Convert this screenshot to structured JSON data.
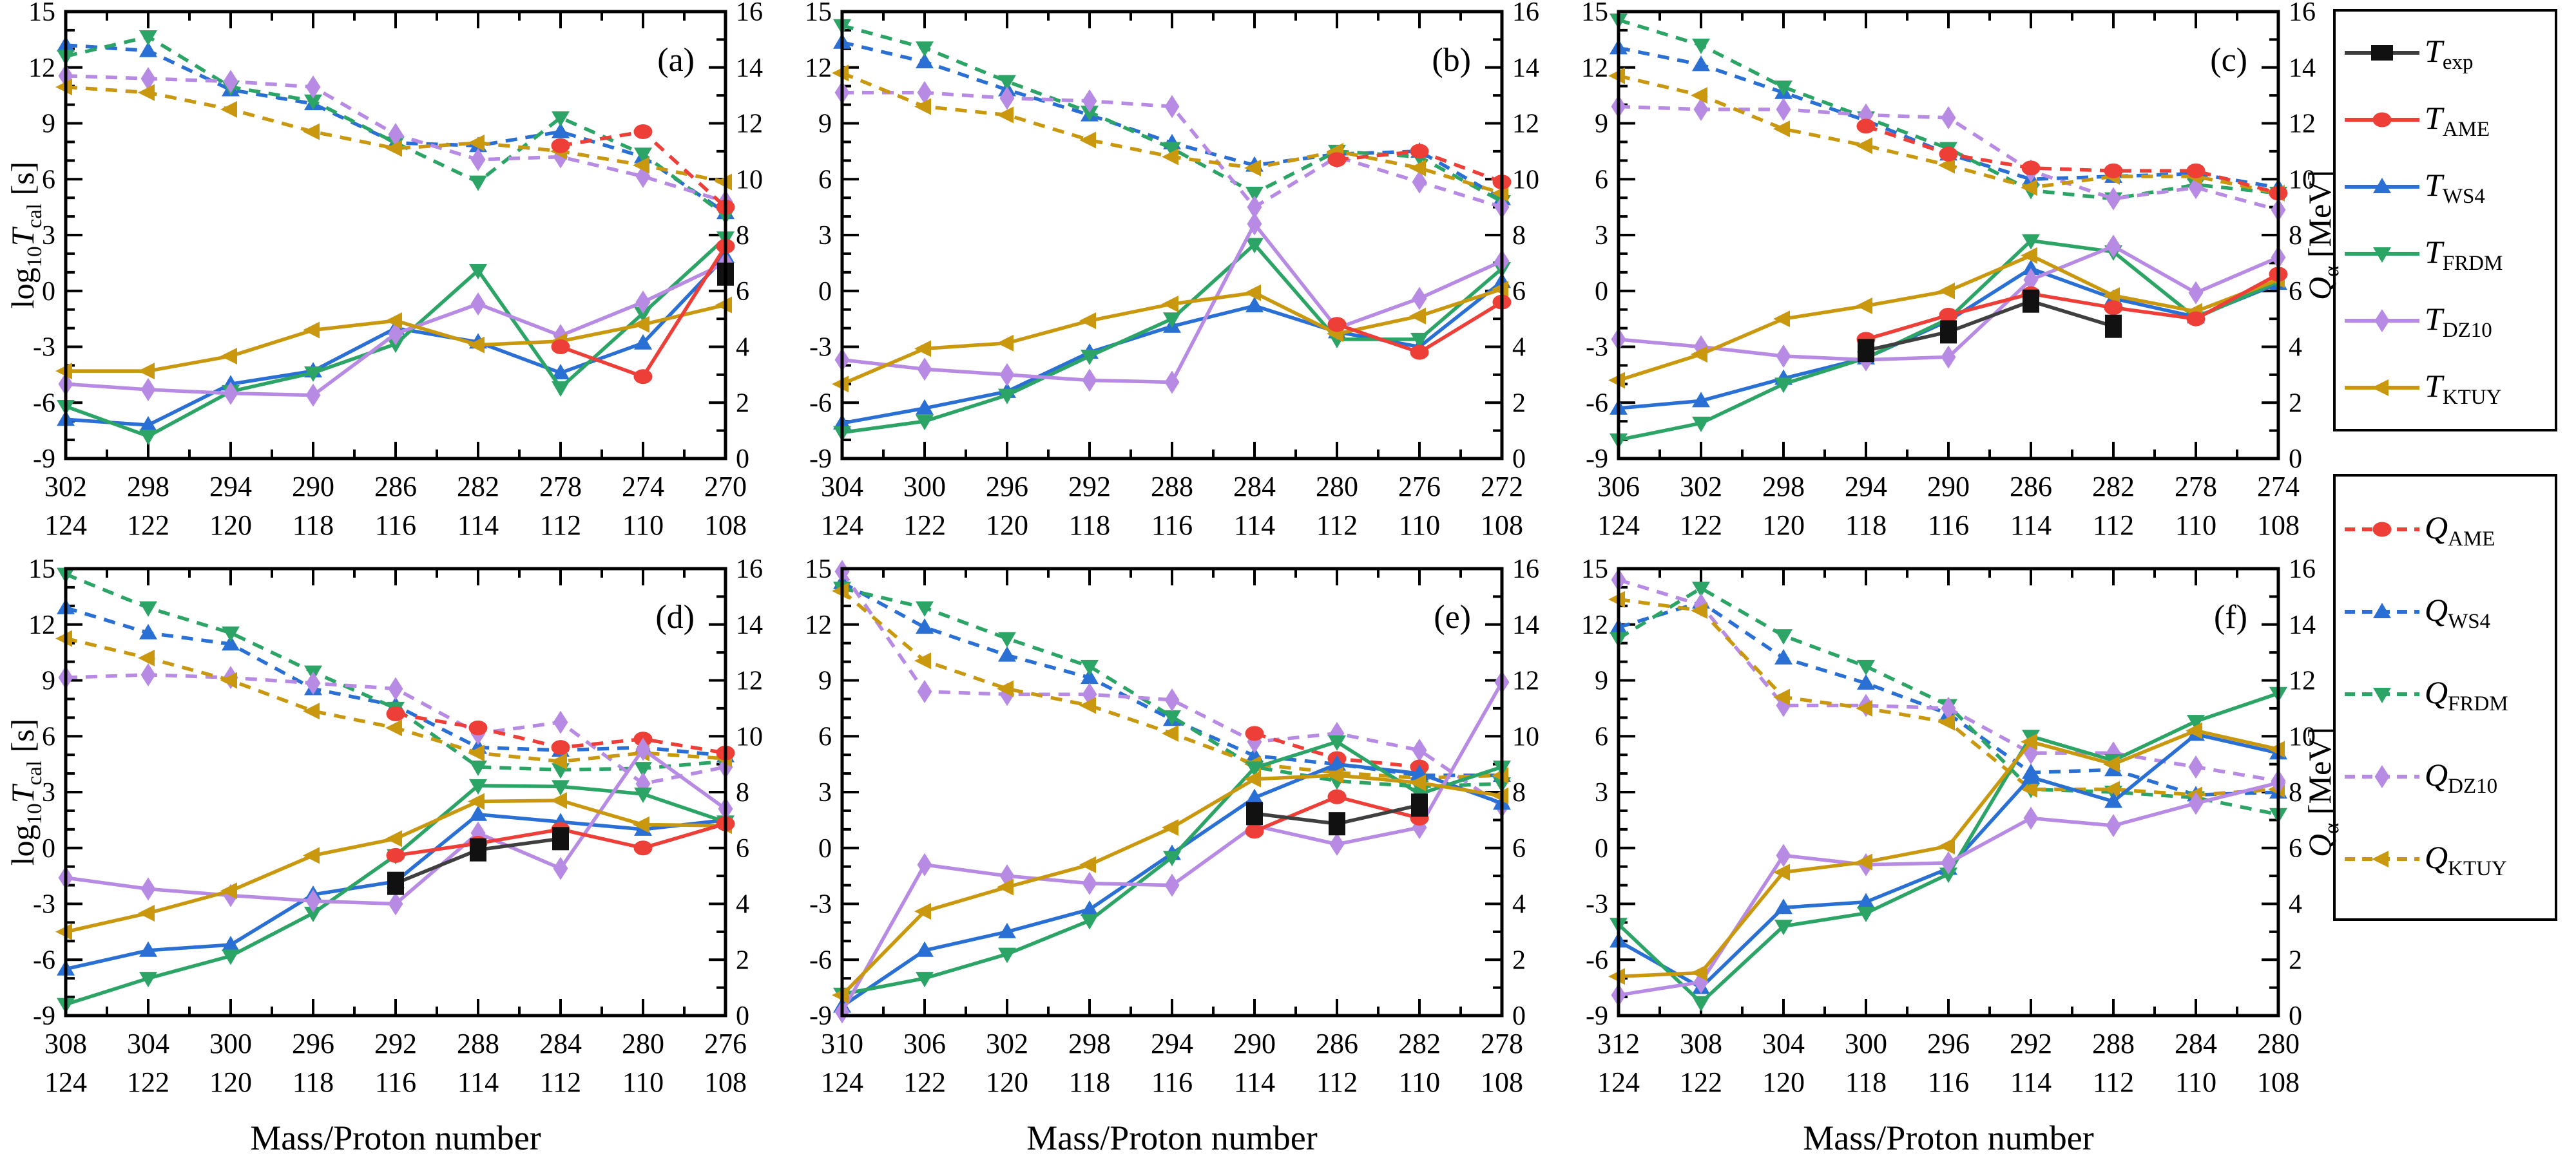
{
  "figure": {
    "x_axis_title": "Mass/Proton number",
    "left_axis_title": "log_{10}*T*_{cal} [s]",
    "right_axis_title": "*Q*_{α} [MeV]",
    "left_axis": {
      "min": -9,
      "max": 15,
      "major": 3,
      "minor": 1
    },
    "right_axis": {
      "min": 0,
      "max": 16,
      "major": 2,
      "minor": 1
    },
    "colors": {
      "black": "#111111",
      "exp_line": "#3f3f3f",
      "red": "#ee3e38",
      "blue": "#2a6fd4",
      "green": "#2ba466",
      "purple": "#b78ae4",
      "gold": "#c9980e"
    }
  },
  "series_styles": [
    {
      "id": "T_exp",
      "label": "*T*_{exp}",
      "color": "#111111",
      "line_color": "#3f3f3f",
      "marker": "square",
      "dashed": false,
      "axis": "left"
    },
    {
      "id": "T_AME",
      "label": "*T*_{AME}",
      "color": "#ee3e38",
      "marker": "circle",
      "dashed": false,
      "axis": "left"
    },
    {
      "id": "T_WS4",
      "label": "*T*_{WS4}",
      "color": "#2a6fd4",
      "marker": "triangle-up",
      "dashed": false,
      "axis": "left"
    },
    {
      "id": "T_FRDM",
      "label": "*T*_{FRDM}",
      "color": "#2ba466",
      "marker": "triangle-down",
      "dashed": false,
      "axis": "left"
    },
    {
      "id": "T_DZ10",
      "label": "*T*_{DZ10}",
      "color": "#b78ae4",
      "marker": "diamond",
      "dashed": false,
      "axis": "left"
    },
    {
      "id": "T_KTUY",
      "label": "*T*_{KTUY}",
      "color": "#c9980e",
      "marker": "triangle-left",
      "dashed": false,
      "axis": "left"
    },
    {
      "id": "Q_AME",
      "label": "*Q*_{AME}",
      "color": "#ee3e38",
      "marker": "circle",
      "dashed": true,
      "axis": "right"
    },
    {
      "id": "Q_WS4",
      "label": "*Q*_{WS4}",
      "color": "#2a6fd4",
      "marker": "triangle-up",
      "dashed": true,
      "axis": "right"
    },
    {
      "id": "Q_FRDM",
      "label": "*Q*_{FRDM}",
      "color": "#2ba466",
      "marker": "triangle-down",
      "dashed": true,
      "axis": "right"
    },
    {
      "id": "Q_DZ10",
      "label": "*Q*_{DZ10}",
      "color": "#b78ae4",
      "marker": "diamond",
      "dashed": true,
      "axis": "right"
    },
    {
      "id": "Q_KTUY",
      "label": "*Q*_{KTUY}",
      "color": "#c9980e",
      "marker": "triangle-left",
      "dashed": true,
      "axis": "right"
    }
  ],
  "legend": {
    "t_box": [
      "T_exp",
      "T_AME",
      "T_WS4",
      "T_FRDM",
      "T_DZ10",
      "T_KTUY"
    ],
    "q_box": [
      "Q_AME",
      "Q_WS4",
      "Q_FRDM",
      "Q_DZ10",
      "Q_KTUY"
    ]
  },
  "chart_data": [
    {
      "type": "line",
      "label": "(a)",
      "row": 1,
      "show_left_title": true,
      "show_right_title": false,
      "show_x_title": false,
      "masses": [
        302,
        298,
        294,
        290,
        286,
        282,
        278,
        274,
        270
      ],
      "protons": [
        124,
        122,
        120,
        118,
        116,
        114,
        112,
        110,
        108
      ],
      "values": {
        "T_exp": [
          null,
          null,
          null,
          null,
          null,
          null,
          null,
          null,
          0.9
        ],
        "T_AME": [
          null,
          null,
          null,
          null,
          null,
          null,
          -3.0,
          -4.6,
          2.4
        ],
        "T_WS4": [
          -6.9,
          -7.2,
          -5.0,
          -4.3,
          -2.0,
          -2.75,
          -4.4,
          -2.8,
          1.85
        ],
        "T_FRDM": [
          -6.2,
          -7.8,
          -5.4,
          -4.4,
          -2.85,
          1.1,
          -5.2,
          -1.2,
          2.85
        ],
        "T_DZ10": [
          -5.0,
          -5.3,
          -5.5,
          -5.6,
          -2.3,
          -0.7,
          -2.4,
          -0.6,
          1.5
        ],
        "T_KTUY": [
          -4.3,
          -4.3,
          -3.5,
          -2.1,
          -1.6,
          -2.9,
          -2.7,
          -1.8,
          -0.75
        ],
        "Q_AME": [
          null,
          null,
          null,
          null,
          null,
          null,
          11.2,
          11.7,
          9.0
        ],
        "Q_WS4": [
          14.8,
          14.6,
          13.2,
          12.7,
          11.3,
          11.2,
          11.7,
          10.8,
          8.8
        ],
        "Q_FRDM": [
          14.4,
          15.1,
          13.3,
          12.8,
          11.3,
          9.9,
          12.2,
          10.9,
          8.7
        ],
        "Q_DZ10": [
          13.7,
          13.6,
          13.5,
          13.3,
          11.6,
          10.7,
          10.8,
          10.1,
          9.2
        ],
        "Q_KTUY": [
          13.3,
          13.1,
          12.5,
          11.7,
          11.1,
          11.3,
          11.0,
          10.5,
          9.9
        ]
      }
    },
    {
      "type": "line",
      "label": "(b)",
      "row": 1,
      "show_left_title": false,
      "show_right_title": false,
      "show_x_title": false,
      "masses": [
        304,
        300,
        296,
        292,
        288,
        284,
        280,
        276,
        272
      ],
      "protons": [
        124,
        122,
        120,
        118,
        116,
        114,
        112,
        110,
        108
      ],
      "values": {
        "T_AME": [
          null,
          null,
          null,
          null,
          null,
          null,
          -1.8,
          -3.3,
          -0.6
        ],
        "T_WS4": [
          -7.1,
          -6.3,
          -5.4,
          -3.3,
          -1.9,
          -0.8,
          -2.2,
          -3.0,
          0.5
        ],
        "T_FRDM": [
          -7.6,
          -7.0,
          -5.6,
          -3.5,
          -1.5,
          2.5,
          -2.6,
          -2.6,
          1.2
        ],
        "T_DZ10": [
          -3.7,
          -4.2,
          -4.5,
          -4.8,
          -4.9,
          3.6,
          -2.0,
          -0.4,
          1.6
        ],
        "T_KTUY": [
          -5.0,
          -3.1,
          -2.8,
          -1.6,
          -0.7,
          -0.1,
          -2.3,
          -1.35,
          0.1
        ],
        "Q_AME": [
          null,
          null,
          null,
          null,
          null,
          null,
          10.7,
          11.0,
          9.9
        ],
        "Q_WS4": [
          14.9,
          14.2,
          13.2,
          12.3,
          11.3,
          10.5,
          10.9,
          11.0,
          9.3
        ],
        "Q_FRDM": [
          15.5,
          14.7,
          13.5,
          12.4,
          11.1,
          9.5,
          11.0,
          10.8,
          9.2
        ],
        "Q_DZ10": [
          13.1,
          13.1,
          12.9,
          12.8,
          12.6,
          9.0,
          10.8,
          9.9,
          9.0
        ],
        "Q_KTUY": [
          13.8,
          12.6,
          12.3,
          11.4,
          10.8,
          10.4,
          11.0,
          10.4,
          9.5
        ]
      }
    },
    {
      "type": "line",
      "label": "(c)",
      "row": 1,
      "show_left_title": false,
      "show_right_title": true,
      "show_x_title": false,
      "masses": [
        306,
        302,
        298,
        294,
        290,
        286,
        282,
        278,
        274
      ],
      "protons": [
        124,
        122,
        120,
        118,
        116,
        114,
        112,
        110,
        108
      ],
      "values": {
        "T_exp": [
          null,
          null,
          null,
          -3.2,
          -2.2,
          -0.55,
          -1.9,
          null,
          null
        ],
        "T_AME": [
          null,
          null,
          null,
          -2.6,
          -1.3,
          -0.15,
          -0.9,
          -1.5,
          0.9
        ],
        "T_WS4": [
          -6.3,
          -5.9,
          -4.7,
          -3.6,
          -1.6,
          1.2,
          -0.4,
          -1.4,
          0.4
        ],
        "T_FRDM": [
          -8.0,
          -7.1,
          -5.0,
          -3.6,
          -1.5,
          2.7,
          2.1,
          -1.45,
          0.5
        ],
        "T_DZ10": [
          -2.6,
          -3.0,
          -3.5,
          -3.7,
          -3.55,
          0.6,
          2.4,
          -0.1,
          1.8
        ],
        "T_KTUY": [
          -4.8,
          -3.4,
          -1.5,
          -0.8,
          0.0,
          1.9,
          -0.25,
          -1.1,
          0.6
        ],
        "Q_AME": [
          null,
          null,
          null,
          11.9,
          10.9,
          10.4,
          10.3,
          10.3,
          9.5
        ],
        "Q_WS4": [
          14.7,
          14.1,
          13.1,
          12.1,
          10.9,
          10.0,
          10.1,
          10.2,
          9.7
        ],
        "Q_FRDM": [
          15.7,
          14.8,
          13.3,
          12.2,
          11.1,
          9.6,
          9.3,
          9.8,
          9.5
        ],
        "Q_DZ10": [
          12.6,
          12.5,
          12.5,
          12.3,
          12.2,
          10.3,
          9.3,
          9.7,
          8.9
        ],
        "Q_KTUY": [
          13.7,
          13.0,
          11.8,
          11.2,
          10.5,
          9.7,
          10.1,
          10.1,
          9.5
        ]
      }
    },
    {
      "type": "line",
      "label": "(d)",
      "row": 2,
      "show_left_title": true,
      "show_right_title": false,
      "show_x_title": true,
      "masses": [
        308,
        304,
        300,
        296,
        292,
        288,
        284,
        280,
        276
      ],
      "protons": [
        124,
        122,
        120,
        118,
        116,
        114,
        112,
        110,
        108
      ],
      "values": {
        "T_exp": [
          null,
          null,
          null,
          null,
          -1.9,
          -0.1,
          0.5,
          null,
          null
        ],
        "T_AME": [
          null,
          null,
          null,
          null,
          -0.4,
          0.25,
          1.0,
          0.0,
          1.3
        ],
        "T_WS4": [
          -6.5,
          -5.5,
          -5.2,
          -2.5,
          -1.8,
          1.8,
          1.4,
          1.0,
          1.5
        ],
        "T_FRDM": [
          -8.4,
          -7.0,
          -5.8,
          -3.5,
          -0.4,
          3.35,
          3.3,
          2.9,
          1.4
        ],
        "T_DZ10": [
          -1.6,
          -2.2,
          -2.55,
          -2.85,
          -3.0,
          0.8,
          -1.1,
          5.3,
          2.1
        ],
        "T_KTUY": [
          -4.5,
          -3.5,
          -2.3,
          -0.4,
          0.5,
          2.5,
          2.55,
          1.25,
          1.2
        ],
        "Q_AME": [
          null,
          null,
          null,
          null,
          10.8,
          10.3,
          9.6,
          9.9,
          9.4
        ],
        "Q_WS4": [
          14.6,
          13.7,
          13.3,
          11.7,
          11.1,
          9.6,
          9.5,
          9.6,
          9.3
        ],
        "Q_FRDM": [
          15.8,
          14.6,
          13.7,
          12.3,
          11.0,
          8.9,
          8.8,
          8.85,
          9.1
        ],
        "Q_DZ10": [
          12.1,
          12.2,
          12.1,
          11.9,
          11.7,
          10.1,
          10.5,
          8.3,
          8.9
        ],
        "Q_KTUY": [
          13.5,
          12.8,
          12.0,
          10.9,
          10.3,
          9.4,
          9.1,
          9.4,
          9.2
        ]
      }
    },
    {
      "type": "line",
      "label": "(e)",
      "row": 2,
      "show_left_title": false,
      "show_right_title": false,
      "show_x_title": true,
      "masses": [
        310,
        306,
        302,
        298,
        294,
        290,
        286,
        282,
        278
      ],
      "protons": [
        124,
        122,
        120,
        118,
        116,
        114,
        112,
        110,
        108
      ],
      "values": {
        "T_exp": [
          null,
          null,
          null,
          null,
          null,
          1.85,
          1.3,
          2.3,
          null
        ],
        "T_AME": [
          null,
          null,
          null,
          null,
          null,
          0.9,
          2.75,
          1.6,
          null
        ],
        "T_WS4": [
          -8.5,
          -5.5,
          -4.5,
          -3.3,
          -0.3,
          2.7,
          4.5,
          4.0,
          2.4
        ],
        "T_FRDM": [
          -7.85,
          -7.0,
          -5.7,
          -3.9,
          -0.5,
          4.3,
          5.7,
          2.9,
          4.35
        ],
        "T_DZ10": [
          -8.8,
          -0.9,
          -1.5,
          -1.9,
          -2.0,
          1.2,
          0.2,
          1.1,
          8.9
        ],
        "T_KTUY": [
          -7.9,
          -3.4,
          -2.1,
          -0.9,
          1.1,
          3.7,
          3.9,
          3.5,
          2.8
        ],
        "Q_AME": [
          null,
          null,
          null,
          null,
          null,
          10.1,
          9.2,
          8.9,
          null
        ],
        "Q_WS4": [
          15.5,
          13.9,
          12.9,
          12.1,
          10.6,
          9.3,
          9.0,
          8.6,
          8.6
        ],
        "Q_FRDM": [
          15.3,
          14.6,
          13.5,
          12.5,
          10.7,
          8.9,
          8.4,
          8.2,
          8.3
        ],
        "Q_DZ10": [
          15.9,
          11.6,
          11.5,
          11.5,
          11.3,
          9.8,
          10.1,
          9.5,
          7.5
        ],
        "Q_KTUY": [
          15.2,
          12.7,
          11.7,
          11.1,
          10.1,
          9.0,
          8.7,
          8.5,
          8.6
        ]
      }
    },
    {
      "type": "line",
      "label": "(f)",
      "row": 2,
      "show_left_title": false,
      "show_right_title": true,
      "show_x_title": true,
      "masses": [
        312,
        308,
        304,
        300,
        296,
        292,
        288,
        284,
        280
      ],
      "protons": [
        124,
        122,
        120,
        118,
        116,
        114,
        112,
        110,
        108
      ],
      "values": {
        "T_WS4": [
          -5.0,
          -7.5,
          -3.2,
          -2.9,
          -1.1,
          3.8,
          2.5,
          6.1,
          5.1
        ],
        "T_FRDM": [
          -4.1,
          -8.3,
          -4.2,
          -3.5,
          -1.4,
          6.0,
          4.7,
          6.8,
          8.3
        ],
        "T_DZ10": [
          -7.9,
          -7.2,
          -0.4,
          -0.9,
          -0.8,
          1.6,
          1.2,
          2.4,
          3.5
        ],
        "T_KTUY": [
          -6.9,
          -6.7,
          -1.3,
          -0.75,
          0.1,
          5.7,
          4.5,
          6.3,
          5.3
        ],
        "Q_WS4": [
          13.9,
          14.8,
          12.8,
          11.9,
          10.8,
          8.7,
          8.8,
          7.9,
          8.0
        ],
        "Q_FRDM": [
          13.5,
          15.3,
          13.6,
          12.5,
          11.1,
          8.1,
          8.0,
          7.8,
          7.2
        ],
        "Q_DZ10": [
          15.6,
          14.7,
          11.1,
          11.1,
          11.0,
          9.4,
          9.4,
          8.9,
          8.4
        ],
        "Q_KTUY": [
          14.9,
          14.5,
          11.4,
          11.0,
          10.5,
          8.1,
          8.1,
          7.9,
          8.1
        ]
      }
    }
  ]
}
